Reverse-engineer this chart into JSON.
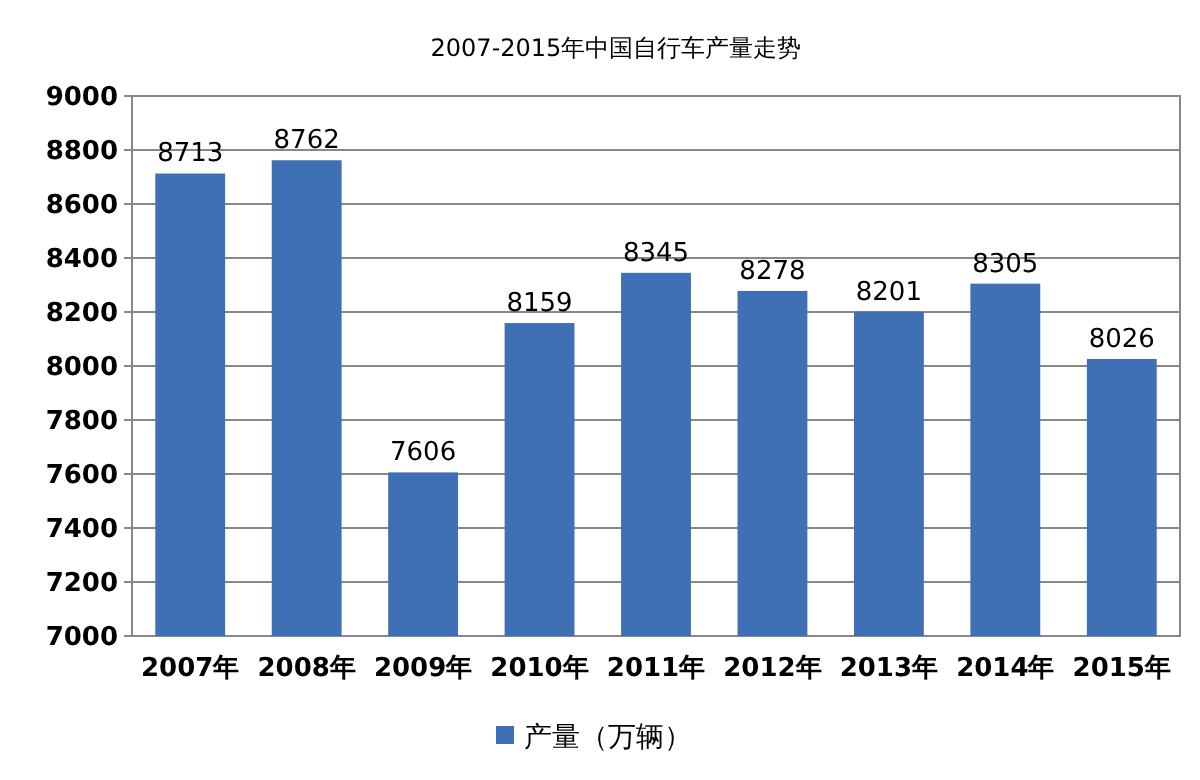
{
  "chart_data": {
    "type": "bar",
    "title": "2007-2015年中国自行车产量走势",
    "categories": [
      "2007年",
      "2008年",
      "2009年",
      "2010年",
      "2011年",
      "2012年",
      "2013年",
      "2014年",
      "2015年"
    ],
    "series": [
      {
        "name": "产量（万辆）",
        "color": "#3f6fb5",
        "values": [
          8713,
          8762,
          7606,
          8159,
          8345,
          8278,
          8201,
          8305,
          8026
        ]
      }
    ],
    "ylim": [
      7000,
      9000
    ],
    "yticks": [
      7000,
      7200,
      7400,
      7600,
      7800,
      8000,
      8200,
      8400,
      8600,
      8800,
      9000
    ],
    "grid": "y",
    "legend": "bottom",
    "data_labels": true
  }
}
